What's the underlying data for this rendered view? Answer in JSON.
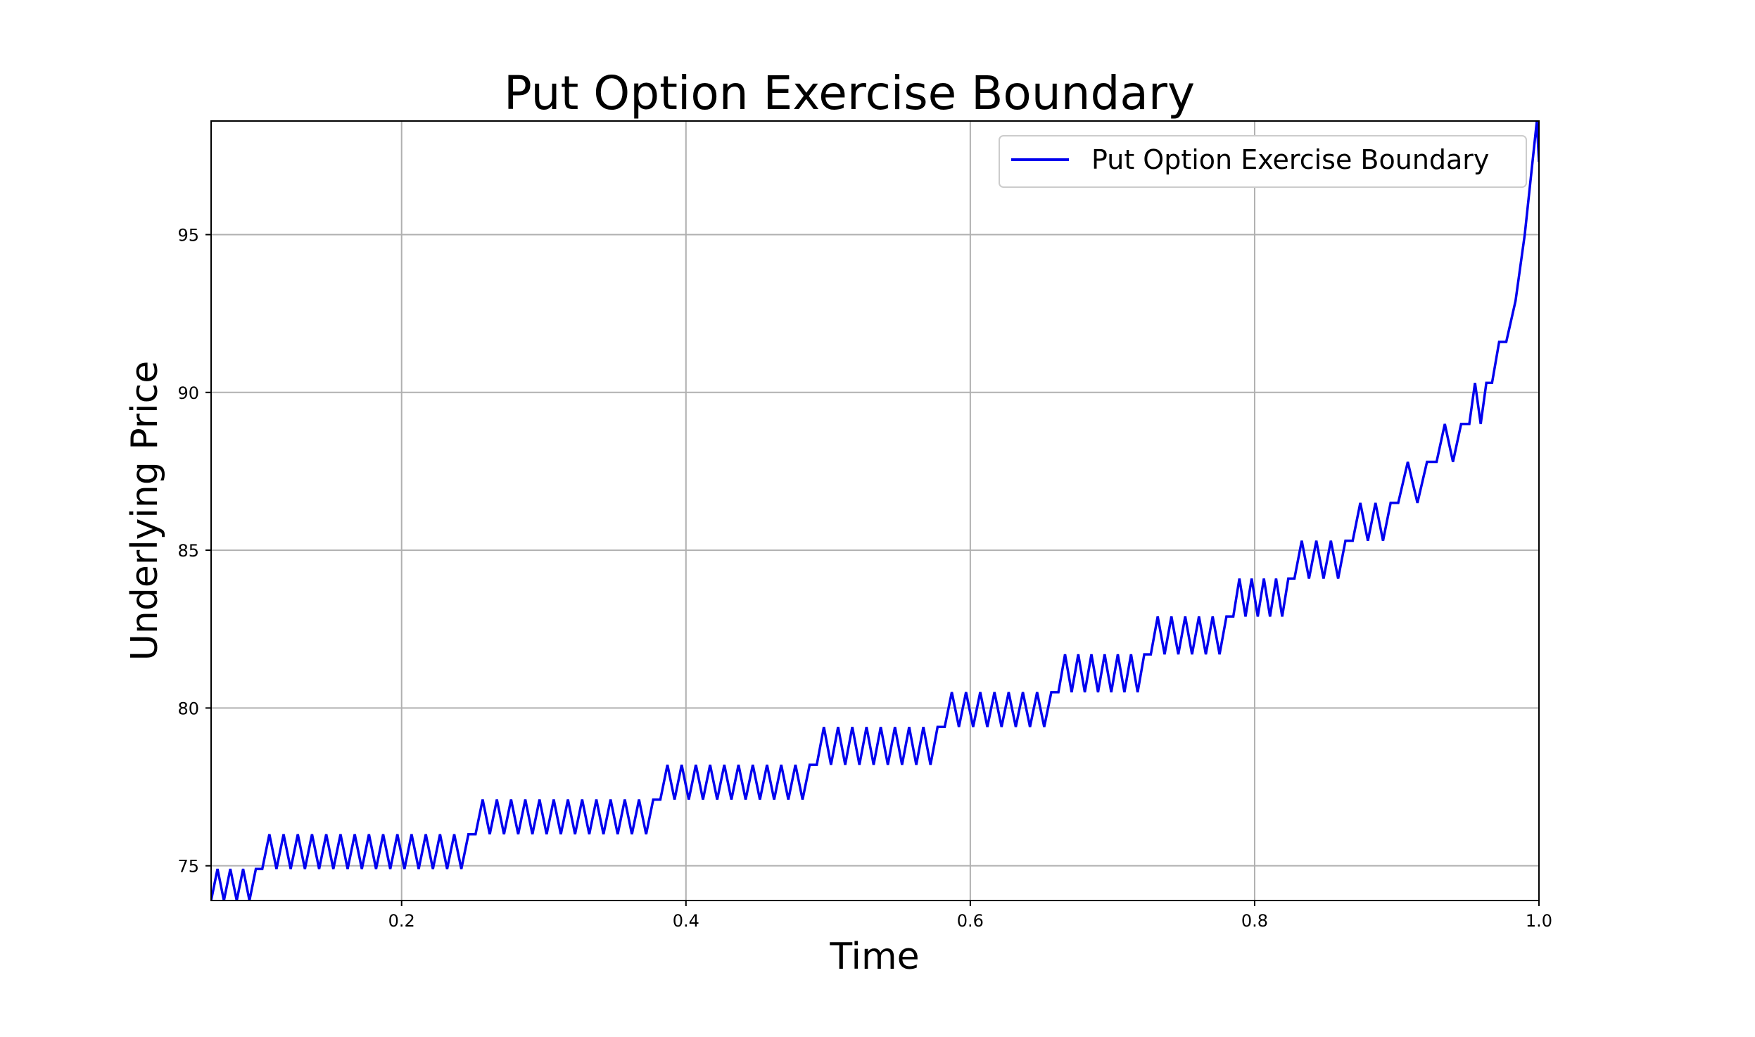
{
  "chart_data": {
    "type": "line",
    "title": "Put Option Exercise Boundary",
    "xlabel": "Time",
    "ylabel": "Underlying Price",
    "xlim": [
      0.066,
      1.0
    ],
    "ylim": [
      73.9,
      98.6
    ],
    "xticks": [
      0.2,
      0.4,
      0.6,
      0.8,
      1.0
    ],
    "xtick_labels": [
      "0.2",
      "0.4",
      "0.6",
      "0.8",
      "1.0"
    ],
    "yticks": [
      75,
      80,
      85,
      90,
      95
    ],
    "ytick_labels": [
      "75",
      "80",
      "85",
      "90",
      "95"
    ],
    "grid": true,
    "legend_position": "top-right",
    "line_color": "#0000ee",
    "series": [
      {
        "name": "Put Option Exercise Boundary",
        "levels": [
          {
            "x_start": 0.066,
            "x_end": 0.102,
            "low": 73.9,
            "high": 74.9,
            "cycles": 4
          },
          {
            "x_start": 0.102,
            "x_end": 0.252,
            "low": 74.9,
            "high": 76.0,
            "cycles": 15
          },
          {
            "x_start": 0.252,
            "x_end": 0.382,
            "low": 76.0,
            "high": 77.1,
            "cycles": 13
          },
          {
            "x_start": 0.382,
            "x_end": 0.492,
            "low": 77.1,
            "high": 78.2,
            "cycles": 11
          },
          {
            "x_start": 0.492,
            "x_end": 0.582,
            "low": 78.2,
            "high": 79.4,
            "cycles": 9
          },
          {
            "x_start": 0.582,
            "x_end": 0.662,
            "low": 79.4,
            "high": 80.5,
            "cycles": 8
          },
          {
            "x_start": 0.662,
            "x_end": 0.727,
            "low": 80.5,
            "high": 81.7,
            "cycles": 7
          },
          {
            "x_start": 0.727,
            "x_end": 0.785,
            "low": 81.7,
            "high": 82.9,
            "cycles": 6
          },
          {
            "x_start": 0.785,
            "x_end": 0.828,
            "low": 82.9,
            "high": 84.1,
            "cycles": 5
          },
          {
            "x_start": 0.828,
            "x_end": 0.869,
            "low": 84.1,
            "high": 85.3,
            "cycles": 4
          },
          {
            "x_start": 0.869,
            "x_end": 0.901,
            "low": 85.3,
            "high": 86.5,
            "cycles": 3
          },
          {
            "x_start": 0.901,
            "x_end": 0.928,
            "low": 86.5,
            "high": 87.8,
            "cycles": 2
          },
          {
            "x_start": 0.928,
            "x_end": 0.951,
            "low": 87.8,
            "high": 89.0,
            "cycles": 2
          },
          {
            "x_start": 0.951,
            "x_end": 0.967,
            "low": 89.0,
            "high": 90.3,
            "cycles": 2
          },
          {
            "x_start": 0.967,
            "x_end": 0.977,
            "low": 90.3,
            "high": 91.6,
            "cycles": 1
          },
          {
            "x_start": 0.977,
            "x_end": 0.99,
            "low": 91.6,
            "high": 92.9,
            "cycles": 1
          }
        ],
        "tail": [
          [
            0.99,
            95.0
          ],
          [
            0.9985,
            98.6
          ],
          [
            1.0,
            97.3
          ]
        ]
      }
    ]
  }
}
